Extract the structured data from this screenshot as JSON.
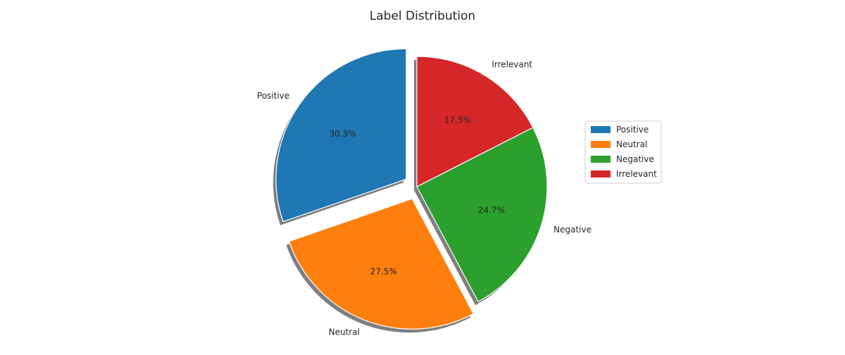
{
  "chart_data": {
    "type": "pie",
    "title": "Label Distribution",
    "categories": [
      "Positive",
      "Neutral",
      "Negative",
      "Irrelevant"
    ],
    "values": [
      30.3,
      27.5,
      24.7,
      17.5
    ],
    "percent_labels": [
      "30.3%",
      "27.5%",
      "24.7%",
      "17.5%"
    ],
    "colors": [
      "#1f77b4",
      "#ff7f0e",
      "#2ca02c",
      "#d62728"
    ],
    "explode": [
      0.1,
      0.1,
      0,
      0
    ],
    "start_angle_deg": 90,
    "shadow": true,
    "legend": {
      "placement": "right",
      "entries": [
        "Positive",
        "Neutral",
        "Negative",
        "Irrelevant"
      ]
    }
  }
}
